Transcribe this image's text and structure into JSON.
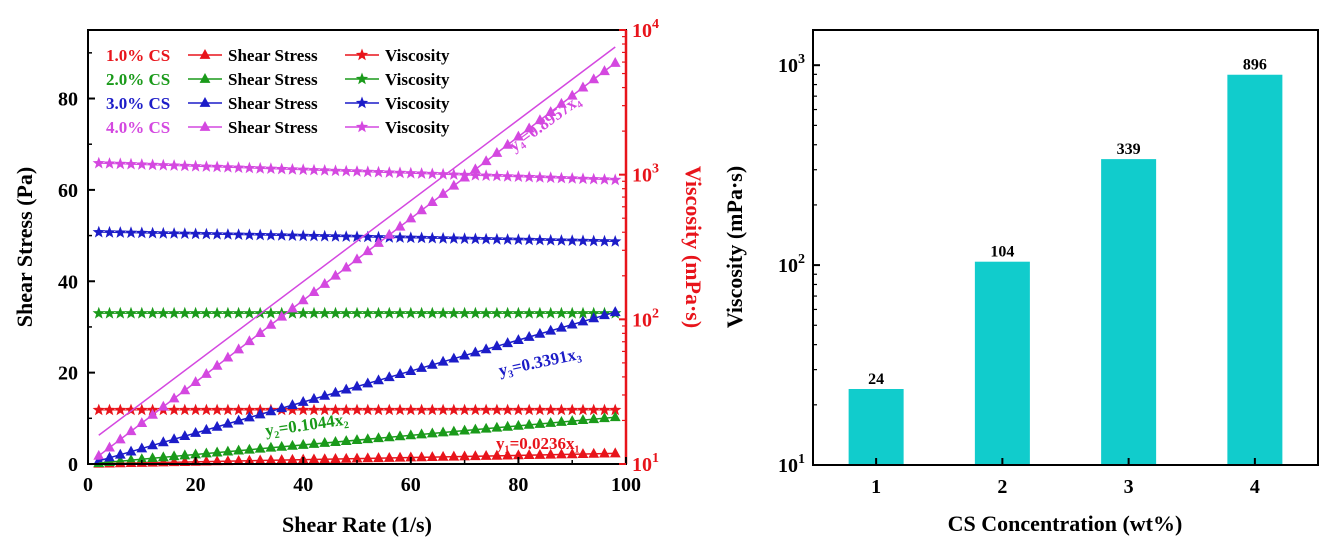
{
  "chart_data": [
    {
      "type": "scatter",
      "xlabel": "Shear Rate (1/s)",
      "ylabel": "Shear Stress (Pa)",
      "y2label": "Viscosity (mPa·s)",
      "xlim": [
        0,
        100
      ],
      "ylim": [
        0,
        95
      ],
      "y2lim": [
        10,
        10000
      ],
      "y2scale": "log",
      "x_ticks": [
        "0",
        "20",
        "40",
        "60",
        "80",
        "100"
      ],
      "y_ticks": [
        "0",
        "20",
        "40",
        "60",
        "80"
      ],
      "y2_ticks": [
        {
          "base": "10",
          "exp": "1"
        },
        {
          "base": "10",
          "exp": "2"
        },
        {
          "base": "10",
          "exp": "3"
        },
        {
          "base": "10",
          "exp": "4"
        }
      ],
      "legend_position": "top-left",
      "series": [
        {
          "name": "1.0% CS",
          "color": "#e8141b",
          "stress_label": "Shear Stress",
          "viscosity_label": "Viscosity",
          "slope": 0.0236,
          "viscosity": 23.6,
          "fit_label": "y₁=0.0236x₁"
        },
        {
          "name": "2.0% CS",
          "color": "#1a9a1a",
          "stress_label": "Shear Stress",
          "viscosity_label": "Viscosity",
          "slope": 0.1044,
          "viscosity": 110,
          "fit_label": "y₂=0.1044x₂"
        },
        {
          "name": "3.0% CS",
          "color": "#1c1cc8",
          "stress_label": "Shear Stress",
          "viscosity_label": "Viscosity",
          "slope": 0.3391,
          "viscosity_start": 400,
          "viscosity_end": 345,
          "fit_label": "y₃=0.3391x₃"
        },
        {
          "name": "4.0% CS",
          "color": "#d448e0",
          "stress_label": "Shear Stress",
          "viscosity_label": "Viscosity",
          "slope": 0.8957,
          "viscosity_start": 1200,
          "viscosity_end": 920,
          "fit_label": "y₄=0.8957x₄"
        }
      ],
      "x_start": 2,
      "x_end": 98,
      "x_step": 2
    },
    {
      "type": "bar",
      "xlabel": "CS Concentration (wt%)",
      "ylabel": "Viscosity (mPa·s)",
      "yscale": "log",
      "ylim": [
        10,
        1500
      ],
      "categories": [
        "1",
        "2",
        "3",
        "4"
      ],
      "values": [
        24,
        104,
        339,
        896
      ],
      "value_labels": [
        "24",
        "104",
        "339",
        "896"
      ],
      "y_ticks": [
        {
          "base": "10",
          "exp": "1"
        },
        {
          "base": "10",
          "exp": "2"
        },
        {
          "base": "10",
          "exp": "3"
        }
      ],
      "bar_color": "#11cccc"
    }
  ]
}
